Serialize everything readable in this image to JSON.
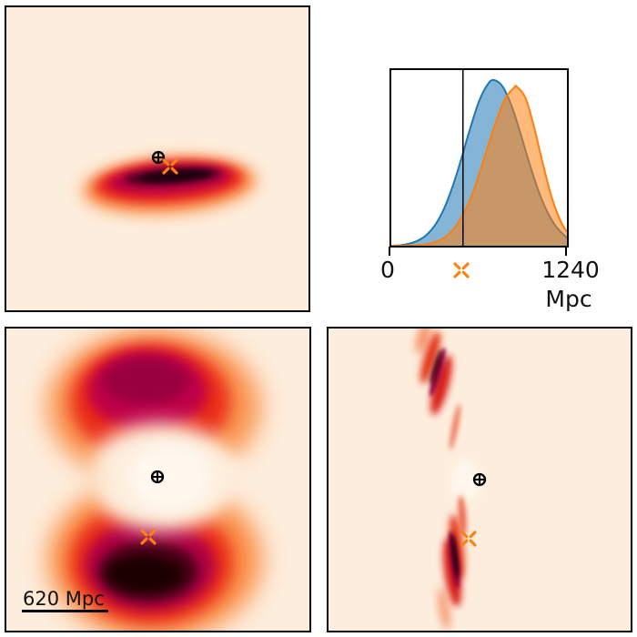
{
  "figure": {
    "background_color": "#ffffff",
    "panel_background_color": "#fdeddc",
    "border_color": "#000000",
    "heat_colormap": [
      "#fdeddc",
      "#f9802e",
      "#e8221c",
      "#b70345",
      "#43021a",
      "#1d0007"
    ]
  },
  "markers": {
    "earth_symbol": "⊕",
    "earth_color": "#000000",
    "truth_symbol": "x",
    "truth_color": "#fb830d"
  },
  "panels": {
    "top_left": {
      "markers": {
        "earth": {
          "x": 167,
          "y": 165
        },
        "truth": {
          "x": 180,
          "y": 175
        }
      }
    },
    "bottom_left": {
      "scale_bar_label": "620 Mpc",
      "markers": {
        "earth": {
          "x": 166,
          "y": 163
        },
        "truth": {
          "x": 156,
          "y": 229
        }
      }
    },
    "bottom_right": {
      "markers": {
        "earth": {
          "x": 166,
          "y": 166
        },
        "truth": {
          "x": 154,
          "y": 231
        }
      }
    }
  },
  "distance_axis": {
    "tick_left": "0",
    "tick_right": "1240",
    "unit": "Mpc",
    "truth_marker": {
      "x": 79,
      "y": 222
    }
  },
  "chart_data": [
    {
      "type": "area",
      "description": "distance posterior probability densities (kernel density estimates)",
      "xlabel": "Mpc",
      "xlim": [
        0,
        1240
      ],
      "x_tick_labels": [
        "0",
        "1240"
      ],
      "grid": false,
      "legend_position": "none",
      "vline_x_mpc": 506,
      "truth_marker_mpc": 506,
      "series": [
        {
          "name": "blue-posterior",
          "line_color": "#1f77b4",
          "fill_color": "#1f77b4",
          "fill_opacity": 0.55,
          "peak_mpc": 727,
          "x": [
            0,
            62,
            124,
            186,
            248,
            310,
            372,
            434,
            496,
            558,
            620,
            682,
            727,
            789,
            851,
            913,
            975,
            1037,
            1099,
            1161,
            1223,
            1240
          ],
          "y": [
            0,
            0.003,
            0.012,
            0.03,
            0.065,
            0.126,
            0.223,
            0.36,
            0.53,
            0.712,
            0.873,
            0.976,
            1.0,
            0.957,
            0.84,
            0.675,
            0.498,
            0.336,
            0.208,
            0.118,
            0.062,
            0.047
          ]
        },
        {
          "name": "orange-posterior",
          "line_color": "#ff7f0e",
          "fill_color": "#ff7f0e",
          "fill_opacity": 0.55,
          "peak_mpc": 886,
          "x": [
            0,
            62,
            124,
            186,
            248,
            310,
            372,
            434,
            496,
            558,
            620,
            682,
            744,
            806,
            868,
            886,
            948,
            1010,
            1072,
            1134,
            1196,
            1240
          ],
          "y": [
            0,
            0,
            0.001,
            0.003,
            0.008,
            0.022,
            0.048,
            0.094,
            0.172,
            0.28,
            0.43,
            0.6,
            0.76,
            0.89,
            0.955,
            0.96,
            0.891,
            0.71,
            0.488,
            0.288,
            0.147,
            0.083
          ]
        }
      ]
    },
    {
      "type": "heatmap",
      "description": "top-left projection: single elongated flattened blob with dark core, Earth and truth markers above it",
      "scale_bar": null
    },
    {
      "type": "heatmap",
      "description": "bottom-left projection: two crescent lobes (dark maroon cores) opening toward central Earth marker; truth marker on lower lobe; scale bar 620 Mpc",
      "scale_bar": "620 Mpc"
    },
    {
      "type": "heatmap",
      "description": "bottom-right projection: thin curved streaks pinching at Earth marker; truth marker beside dark lower streak",
      "scale_bar": null
    }
  ]
}
